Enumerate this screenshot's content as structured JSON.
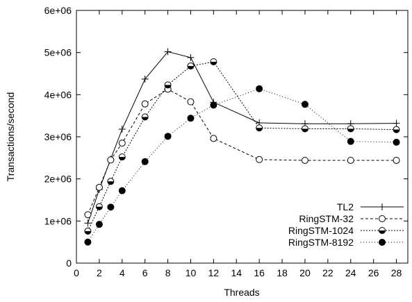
{
  "chart_data": {
    "type": "line",
    "xlabel": "Threads",
    "ylabel": "Transactions/second",
    "xlim": [
      0,
      29
    ],
    "ylim": [
      0,
      6000000
    ],
    "x_ticks": [
      0,
      2,
      4,
      6,
      8,
      10,
      12,
      14,
      16,
      18,
      20,
      22,
      24,
      26,
      28
    ],
    "x_tick_labels": [
      "0",
      "2",
      "4",
      "6",
      "8",
      "10",
      "12",
      "14",
      "16",
      "18",
      "20",
      "22",
      "24",
      "26",
      "28"
    ],
    "y_ticks": [
      0,
      1000000,
      2000000,
      3000000,
      4000000,
      5000000,
      6000000
    ],
    "y_tick_labels": [
      "0",
      "1e+06",
      "2e+06",
      "3e+06",
      "4e+06",
      "5e+06",
      "6e+06"
    ],
    "grid": false,
    "legend_position": "bottom-right",
    "x": [
      1,
      2,
      3,
      4,
      6,
      8,
      10,
      12,
      16,
      20,
      24,
      28
    ],
    "series": [
      {
        "name": "TL2",
        "marker": "plus",
        "dash": "solid",
        "values": [
          950000,
          1750000,
          2470000,
          3180000,
          4370000,
          5020000,
          4880000,
          3820000,
          3330000,
          3310000,
          3310000,
          3320000
        ]
      },
      {
        "name": "RingSTM-32",
        "marker": "open-circle",
        "dash": "dashed",
        "values": [
          1150000,
          1800000,
          2450000,
          2850000,
          3780000,
          4130000,
          3830000,
          2960000,
          2460000,
          2440000,
          2440000,
          2440000
        ]
      },
      {
        "name": "RingSTM-1024",
        "marker": "half-circle",
        "dash": "fine-dotted",
        "values": [
          760000,
          1340000,
          1940000,
          2520000,
          3470000,
          4230000,
          4680000,
          4780000,
          3210000,
          3190000,
          3190000,
          3170000
        ]
      },
      {
        "name": "RingSTM-8192",
        "marker": "filled-circle",
        "dash": "dotted",
        "values": [
          500000,
          920000,
          1330000,
          1720000,
          2410000,
          3010000,
          3440000,
          3750000,
          4140000,
          3770000,
          2890000,
          2870000
        ]
      }
    ]
  }
}
